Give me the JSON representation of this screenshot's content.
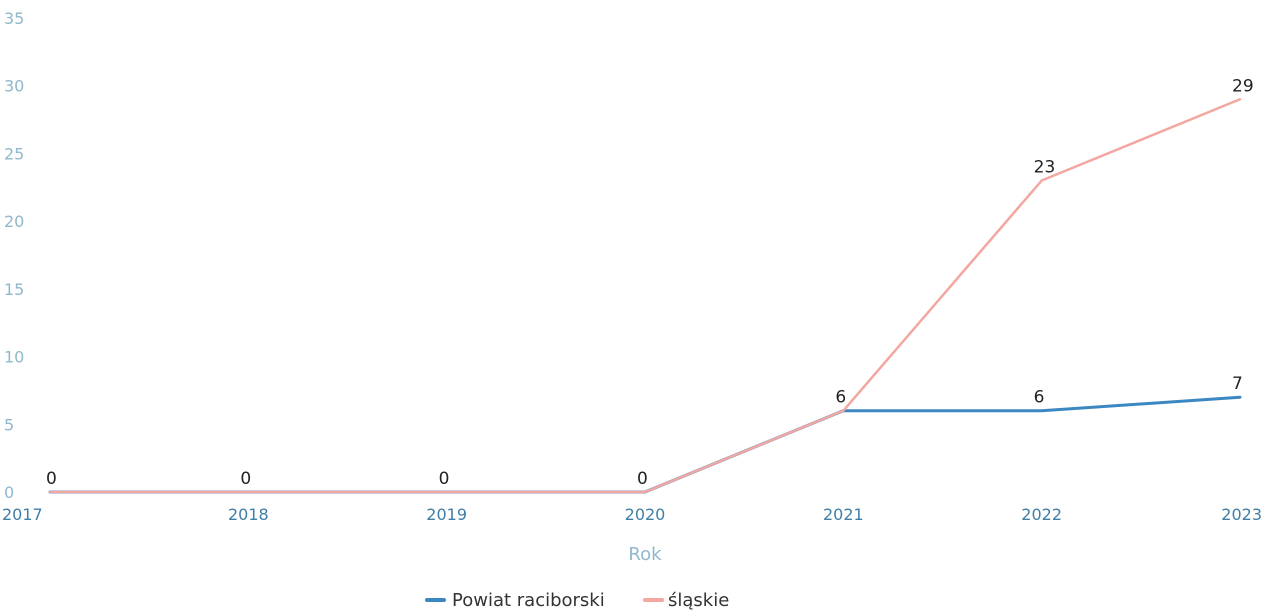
{
  "chart_data": {
    "type": "line",
    "x": [
      "2017",
      "2018",
      "2019",
      "2020",
      "2021",
      "2022",
      "2023"
    ],
    "xlabel": "Rok",
    "ylabel": "",
    "ylim": [
      0,
      35
    ],
    "yticks": [
      0,
      5,
      10,
      15,
      20,
      25,
      30,
      35
    ],
    "grid": false,
    "legend_position": "bottom-center",
    "series": [
      {
        "name": "Powiat raciborski",
        "color": "#3a87c2",
        "values": [
          0,
          0,
          0,
          0,
          6,
          6,
          7
        ]
      },
      {
        "name": "śląskie",
        "color": "#f4a6a0",
        "values": [
          0,
          0,
          0,
          0,
          6,
          23,
          29
        ]
      }
    ]
  }
}
